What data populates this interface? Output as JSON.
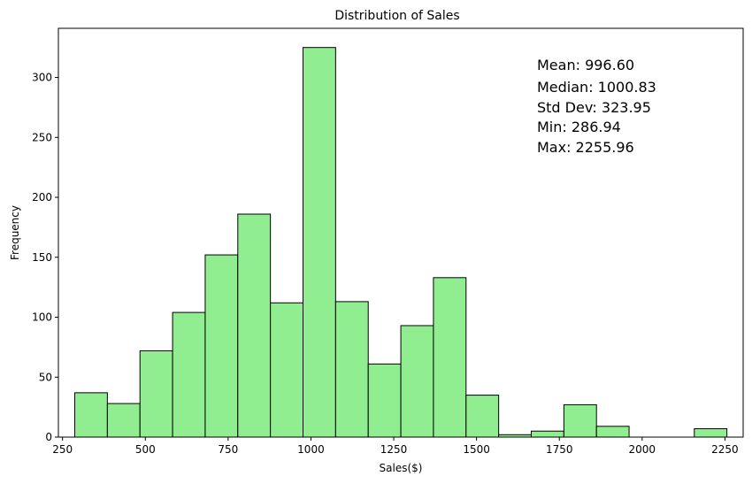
{
  "chart_data": {
    "type": "bar",
    "title": "Distribution of Sales",
    "xlabel": "Sales($)",
    "ylabel": "Frequency",
    "xlim": [
      237.5,
      2305
    ],
    "ylim": [
      0,
      341
    ],
    "xticks": [
      250,
      500,
      750,
      1000,
      1250,
      1500,
      1750,
      2000,
      2250
    ],
    "yticks": [
      0,
      50,
      100,
      150,
      200,
      250,
      300
    ],
    "bin_edges": [
      286.94,
      385.39,
      483.84,
      582.29,
      680.74,
      779.19,
      877.64,
      976.09,
      1074.54,
      1172.99,
      1271.45,
      1369.9,
      1468.35,
      1566.8,
      1665.25,
      1763.7,
      1862.15,
      1960.6,
      2059.06,
      2157.51,
      2255.96
    ],
    "counts": [
      37,
      28,
      72,
      104,
      152,
      186,
      112,
      325,
      113,
      61,
      93,
      133,
      35,
      2,
      5,
      27,
      9,
      0,
      0,
      7
    ],
    "bar_color": "#90ee90",
    "edge_color": "#000000",
    "grid": false,
    "annotations": [
      "Mean: 996.60",
      "Median: 1000.83",
      "Std Dev: 323.95",
      "Min: 286.94",
      "Max: 2255.96"
    ]
  }
}
